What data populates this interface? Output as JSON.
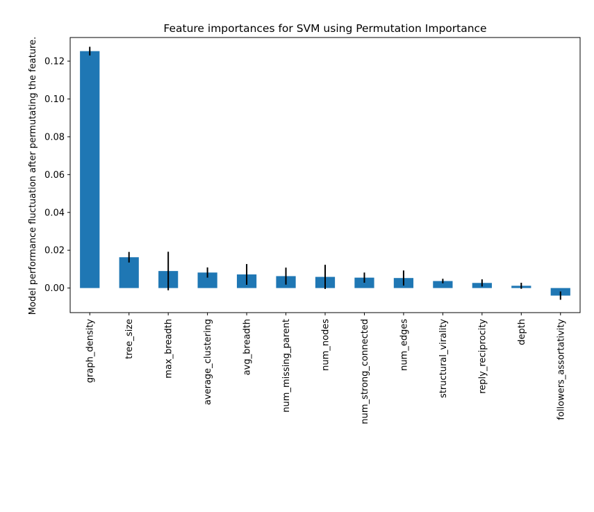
{
  "chart_data": {
    "type": "bar",
    "title": "Feature importances for SVM using Permutation Importance",
    "xlabel": "",
    "ylabel": "Model performance fluctuation after permutating the feature.",
    "ylim": [
      -0.013,
      0.1325
    ],
    "yticks": [
      0.0,
      0.02,
      0.04,
      0.06,
      0.08,
      0.1,
      0.12
    ],
    "ytick_labels": [
      "0.00",
      "0.02",
      "0.04",
      "0.06",
      "0.08",
      "0.10",
      "0.12"
    ],
    "categories": [
      "graph_density",
      "tree_size",
      "max_breadth",
      "average_clustering",
      "avg_breadth",
      "num_missing_parent",
      "num_nodes",
      "num_strong_connected",
      "num_edges",
      "structural_virality",
      "reply_reciprocity",
      "depth",
      "followers_assortativity"
    ],
    "values": [
      0.1253,
      0.0163,
      0.009,
      0.0082,
      0.0072,
      0.0063,
      0.0059,
      0.0055,
      0.0053,
      0.0037,
      0.0027,
      0.0012,
      -0.004
    ],
    "errors": [
      0.0023,
      0.0028,
      0.0102,
      0.0027,
      0.0055,
      0.0045,
      0.0064,
      0.0027,
      0.004,
      0.0012,
      0.0019,
      0.0016,
      0.0022
    ],
    "grid": false,
    "legend": "none",
    "colors": {
      "bar": "#1f77b4",
      "error": "#000000",
      "axis": "#000000"
    }
  }
}
